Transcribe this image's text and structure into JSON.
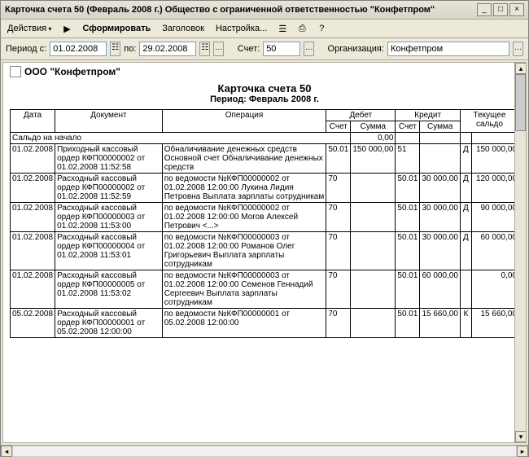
{
  "window": {
    "title": "Карточка счета 50 (Февраль 2008 г.) Общество с ограниченной ответственностью \"Конфетпром\""
  },
  "menu": {
    "actions": "Действия",
    "run": "Сформировать",
    "header": "Заголовок",
    "settings": "Настройка..."
  },
  "filter": {
    "period_from_label": "Период с:",
    "period_from": "01.02.2008",
    "period_to_label": "по:",
    "period_to": "29.02.2008",
    "account_label": "Счет:",
    "account": "50",
    "org_label": "Организация:",
    "org": "Конфетпром"
  },
  "doc": {
    "org": "ООО \"Конфетпром\"",
    "title": "Карточка счета 50",
    "period": "Период: Февраль 2008 г."
  },
  "columns": {
    "date": "Дата",
    "document": "Документ",
    "operation": "Операция",
    "debit": "Дебет",
    "credit": "Кредит",
    "balance": "Текущее сальдо",
    "acc": "Счет",
    "sum": "Сумма"
  },
  "opening": {
    "label": "Сальдо на начало",
    "value": "0,00"
  },
  "rows": [
    {
      "date": "01.02.2008",
      "document": "Приходный кассовый ордер КФП00000002 от 01.02.2008 11:52:58",
      "operation": "Обналичивание денежных средств Основной счет Обналичивание денежных средств",
      "dt_acc": "50.01",
      "dt_sum": "150 000,00",
      "kt_acc": "51",
      "kt_sum": "",
      "bal_dk": "Д",
      "bal_sum": "150 000,00"
    },
    {
      "date": "01.02.2008",
      "document": "Расходный кассовый ордер КФП00000002 от 01.02.2008 11:52:59",
      "operation": "по ведомости №КФП00000002 от 01.02.2008 12:00:00 Лукина Лидия Петровна Выплата зарплаты сотрудникам",
      "dt_acc": "70",
      "dt_sum": "",
      "kt_acc": "50.01",
      "kt_sum": "30 000,00",
      "bal_dk": "Д",
      "bal_sum": "120 000,00"
    },
    {
      "date": "01.02.2008",
      "document": "Расходный кассовый ордер КФП00000003 от 01.02.2008 11:53:00",
      "operation": "по ведомости №КФП00000002 от 01.02.2008 12:00:00 Могов Алексей Петрович <...>",
      "dt_acc": "70",
      "dt_sum": "",
      "kt_acc": "50.01",
      "kt_sum": "30 000,00",
      "bal_dk": "Д",
      "bal_sum": "90 000,00"
    },
    {
      "date": "01.02.2008",
      "document": "Расходный кассовый ордер КФП00000004 от 01.02.2008 11:53:01",
      "operation": "по ведомости №КФП00000003 от 01.02.2008 12:00:00 Романов Олег Григорьевич Выплата зарплаты сотрудникам",
      "dt_acc": "70",
      "dt_sum": "",
      "kt_acc": "50.01",
      "kt_sum": "30 000,00",
      "bal_dk": "Д",
      "bal_sum": "60 000,00"
    },
    {
      "date": "01.02.2008",
      "document": "Расходный кассовый ордер КФП00000005 от 01.02.2008 11:53:02",
      "operation": "по ведомости №КФП00000003 от 01.02.2008 12:00:00 Семенов Геннадий Сергеевич Выплата зарплаты сотрудникам",
      "dt_acc": "70",
      "dt_sum": "",
      "kt_acc": "50.01",
      "kt_sum": "60 000,00",
      "bal_dk": "",
      "bal_sum": "0,00"
    },
    {
      "date": "05.02.2008",
      "document": "Расходный кассовый ордер КФП00000001 от 05.02.2008 12:00:00",
      "operation": "по ведомости №КФП00000001 от 05.02.2008 12:00:00",
      "dt_acc": "70",
      "dt_sum": "",
      "kt_acc": "50.01",
      "kt_sum": "15 660,00",
      "bal_dk": "К",
      "bal_sum": "15 660,00"
    }
  ]
}
